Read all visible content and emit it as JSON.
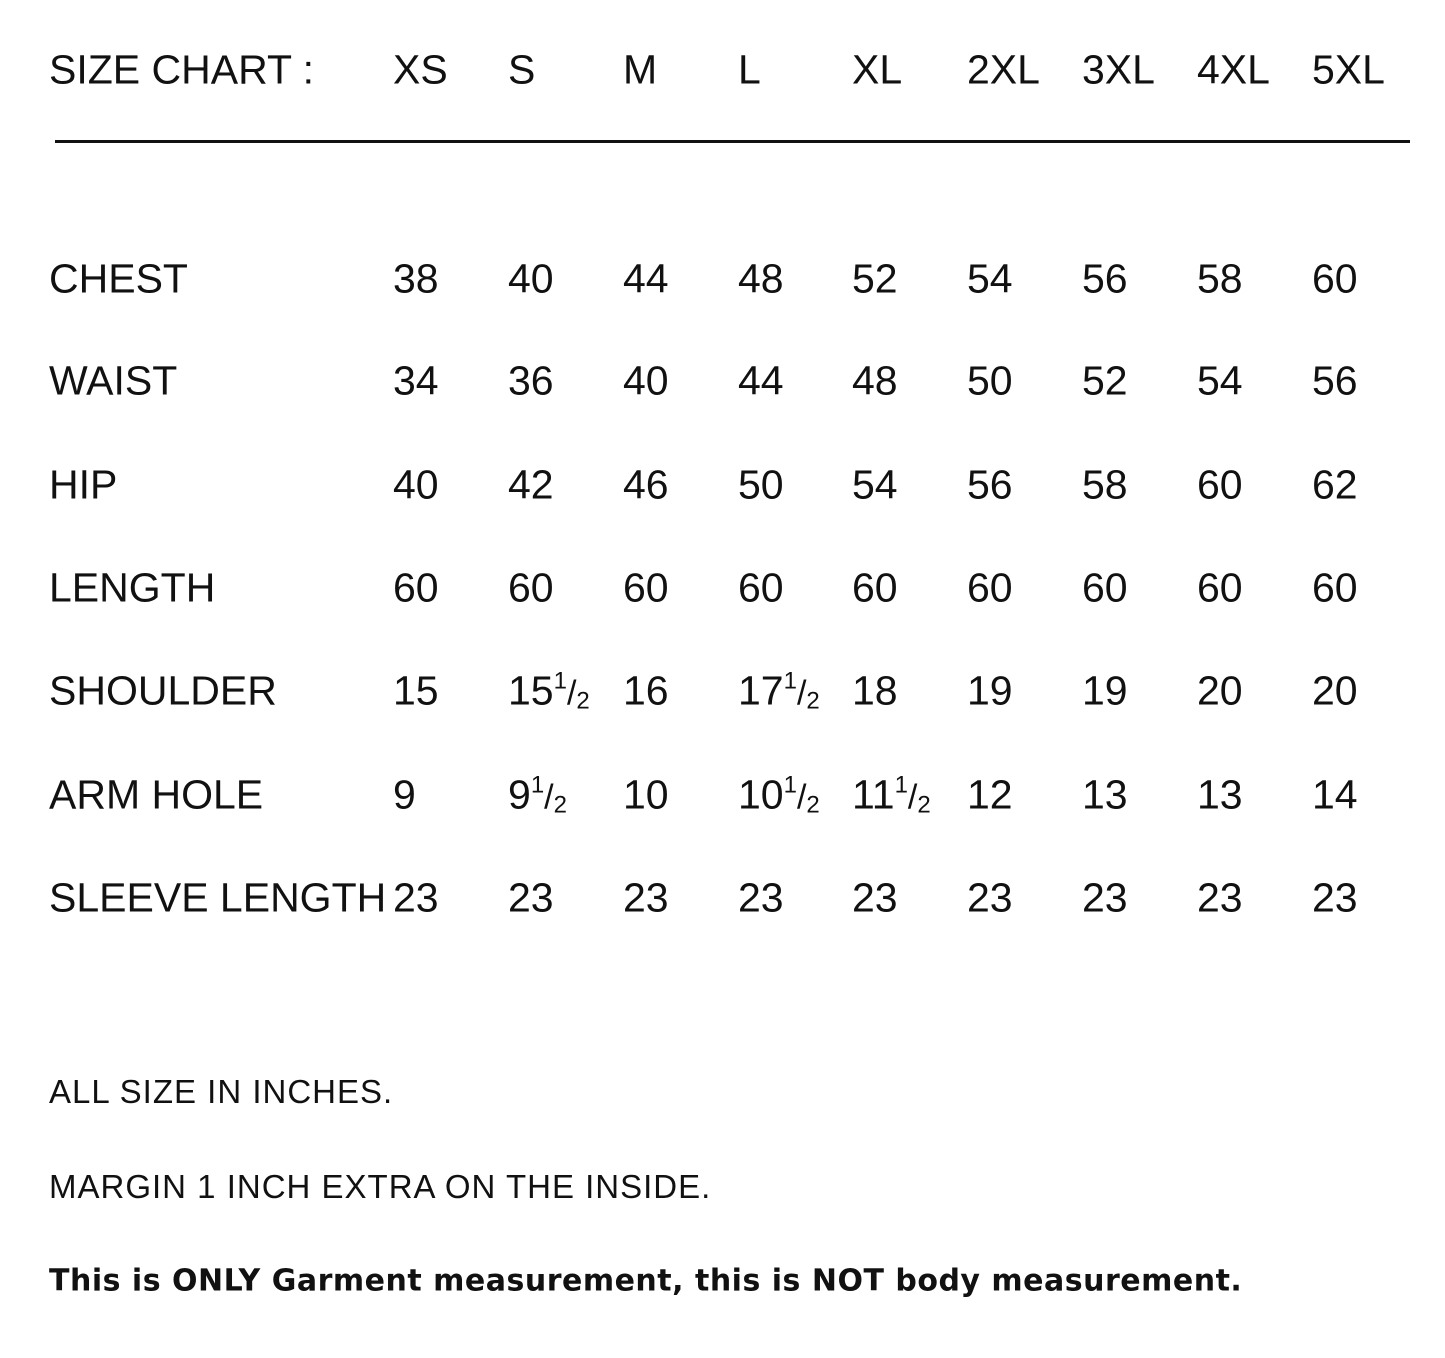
{
  "title": "SIZE CHART :",
  "sizes": [
    "XS",
    "S",
    "M",
    "L",
    "XL",
    "2XL",
    "3XL",
    "4XL",
    "5XL"
  ],
  "rows": [
    {
      "label": "CHEST",
      "values": [
        "38",
        "40",
        "44",
        "48",
        "52",
        "54",
        "56",
        "58",
        "60"
      ]
    },
    {
      "label": "WAIST",
      "values": [
        "34",
        "36",
        "40",
        "44",
        "48",
        "50",
        "52",
        "54",
        "56"
      ]
    },
    {
      "label": "HIP",
      "values": [
        "40",
        "42",
        "46",
        "50",
        "54",
        "56",
        "58",
        "60",
        "62"
      ]
    },
    {
      "label": "LENGTH",
      "values": [
        "60",
        "60",
        "60",
        "60",
        "60",
        "60",
        "60",
        "60",
        "60"
      ]
    },
    {
      "label": "SHOULDER",
      "values": [
        "15",
        "15 1/2",
        "16",
        "17 1/2",
        "18",
        "19",
        "19",
        "20",
        "20"
      ]
    },
    {
      "label": "ARM HOLE",
      "values": [
        "9",
        "9 1/2",
        "10",
        "10 1/2",
        "11 1/2",
        "12",
        "13",
        "13",
        "14"
      ]
    },
    {
      "label": "SLEEVE LENGTH",
      "values": [
        "23",
        "23",
        "23",
        "23",
        "23",
        "23",
        "23",
        "23",
        "23"
      ]
    }
  ],
  "notes": {
    "units": "ALL SIZE IN INCHES.",
    "margin": "MARGIN 1 INCH EXTRA ON THE INSIDE.",
    "disclaimer": "This is ONLY Garment measurement, this is NOT body measurement."
  }
}
